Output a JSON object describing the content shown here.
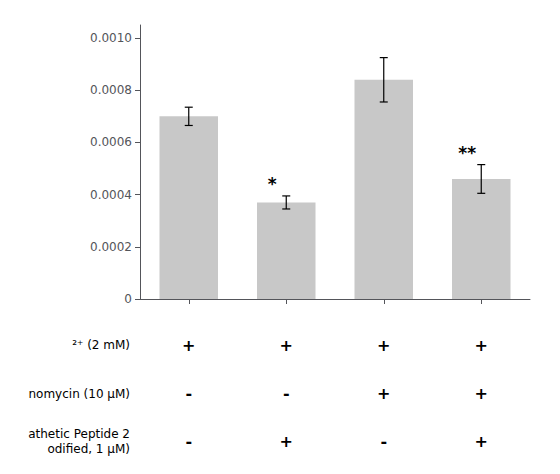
{
  "chart_data": {
    "type": "bar",
    "categories": [
      null,
      null,
      null,
      null
    ],
    "values": [
      0.0007,
      0.00037,
      0.00084,
      0.00046
    ],
    "errors": [
      3.5e-05,
      2.5e-05,
      8.5e-05,
      5.5e-05
    ],
    "significance": [
      null,
      "*",
      null,
      "**"
    ],
    "color": "#c8c8c8",
    "ylim": [
      0,
      0.00105
    ],
    "yticks": [
      0,
      0.0002,
      0.0004,
      0.0006,
      0.0008,
      {
        "value": 0.001,
        "label": "0.0010"
      }
    ],
    "grid": false,
    "tick_labels": "y",
    "table": {
      "rows": [
        {
          "label": "²⁺ (2 mM)",
          "cells": [
            "+",
            "+",
            "+",
            "+"
          ]
        },
        {
          "label": "nomycin (10 μM)",
          "cells": [
            "-",
            "-",
            "+",
            "+"
          ]
        },
        {
          "label": "athetic Peptide 2\nodified, 1 μM)",
          "cells": [
            "-",
            "+",
            "-",
            "+"
          ]
        }
      ]
    }
  }
}
